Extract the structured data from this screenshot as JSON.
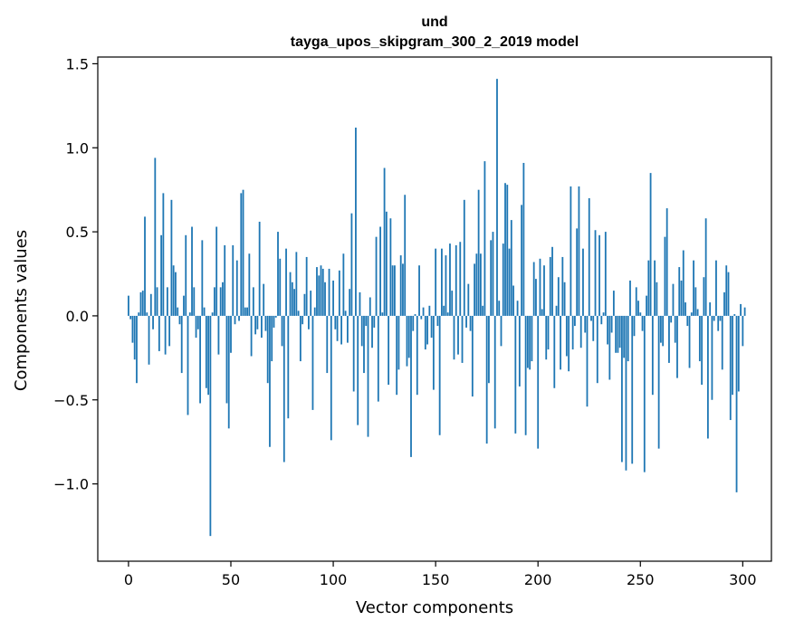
{
  "chart_data": {
    "type": "bar",
    "title_lines": [
      "und",
      "tayga_upos_skipgram_300_2_2019 model"
    ],
    "xlabel": "Vector components",
    "ylabel": "Components values",
    "xlim": [
      -15,
      314
    ],
    "ylim": [
      -1.46,
      1.54
    ],
    "xticks": [
      0,
      50,
      100,
      150,
      200,
      250,
      300
    ],
    "xtick_labels": [
      "0",
      "50",
      "100",
      "150",
      "200",
      "250",
      "300"
    ],
    "yticks": [
      -1.0,
      -0.5,
      0.0,
      0.5,
      1.0,
      1.5
    ],
    "ytick_labels": [
      "−1.0",
      "−0.5",
      "0.0",
      "0.5",
      "1.0",
      "1.5"
    ],
    "bar_color": "#1f77b4",
    "grid": false,
    "legend": "none",
    "values": [
      0.12,
      -0.02,
      -0.16,
      -0.26,
      -0.4,
      0.02,
      0.14,
      0.15,
      0.59,
      0.02,
      -0.29,
      0.13,
      -0.08,
      0.94,
      0.17,
      -0.21,
      0.48,
      0.73,
      -0.23,
      0.17,
      -0.18,
      0.69,
      0.3,
      0.26,
      0.05,
      -0.05,
      -0.34,
      0.12,
      0.48,
      -0.59,
      0.02,
      0.53,
      0.17,
      -0.13,
      -0.08,
      -0.52,
      0.45,
      0.05,
      -0.43,
      -0.47,
      -1.31,
      0.02,
      0.17,
      0.53,
      -0.23,
      0.17,
      0.2,
      0.42,
      -0.52,
      -0.67,
      -0.22,
      0.42,
      -0.05,
      0.33,
      -0.03,
      0.73,
      0.75,
      0.05,
      0.05,
      0.37,
      -0.24,
      0.17,
      -0.11,
      -0.08,
      0.56,
      -0.13,
      0.19,
      -0.09,
      -0.4,
      -0.78,
      -0.27,
      -0.07,
      -0.01,
      0.5,
      0.34,
      -0.18,
      -0.87,
      0.4,
      -0.61,
      0.26,
      0.2,
      0.16,
      0.38,
      0.03,
      -0.27,
      -0.05,
      0.13,
      0.35,
      -0.08,
      0.15,
      -0.56,
      0.05,
      0.29,
      0.24,
      0.3,
      0.28,
      0.2,
      -0.34,
      0.28,
      -0.74,
      0.21,
      -0.08,
      -0.15,
      0.27,
      -0.17,
      0.37,
      0.03,
      -0.16,
      0.16,
      0.61,
      -0.45,
      1.12,
      -0.65,
      0.14,
      -0.18,
      -0.34,
      -0.06,
      -0.72,
      0.11,
      -0.19,
      -0.07,
      0.47,
      -0.51,
      0.53,
      0.02,
      0.88,
      0.62,
      -0.41,
      0.58,
      0.3,
      0.3,
      -0.47,
      -0.32,
      0.36,
      0.31,
      0.72,
      -0.3,
      -0.25,
      -0.84,
      -0.09,
      0.01,
      -0.47,
      0.3,
      -0.02,
      0.05,
      -0.2,
      -0.17,
      0.06,
      -0.13,
      -0.44,
      0.4,
      -0.06,
      -0.71,
      0.4,
      0.06,
      0.36,
      0.02,
      0.43,
      0.15,
      -0.26,
      0.42,
      -0.23,
      0.44,
      -0.28,
      0.69,
      -0.07,
      0.19,
      -0.09,
      -0.48,
      0.31,
      0.37,
      0.75,
      0.37,
      0.06,
      0.92,
      -0.76,
      -0.4,
      0.45,
      0.5,
      -0.67,
      1.41,
      0.09,
      -0.18,
      0.43,
      0.79,
      0.78,
      0.4,
      0.57,
      0.18,
      -0.7,
      0.09,
      -0.42,
      0.66,
      0.91,
      -0.71,
      -0.31,
      -0.32,
      -0.27,
      0.32,
      0.22,
      -0.79,
      0.34,
      0.04,
      0.3,
      -0.26,
      -0.2,
      0.35,
      0.41,
      -0.43,
      0.06,
      0.23,
      -0.32,
      0.35,
      0.2,
      -0.24,
      -0.33,
      0.77,
      -0.2,
      -0.06,
      0.52,
      0.77,
      -0.19,
      0.4,
      -0.1,
      -0.54,
      0.7,
      -0.03,
      -0.15,
      0.51,
      -0.4,
      0.48,
      -0.05,
      0.02,
      0.5,
      -0.17,
      -0.38,
      -0.1,
      0.15,
      -0.22,
      -0.22,
      -0.19,
      -0.87,
      -0.25,
      -0.92,
      -0.27,
      0.21,
      -0.88,
      -0.12,
      0.17,
      0.09,
      0.02,
      -0.09,
      -0.93,
      0.12,
      0.33,
      0.85,
      -0.47,
      0.33,
      0.2,
      -0.79,
      -0.16,
      -0.18,
      0.47,
      0.64,
      -0.28,
      -0.04,
      0.19,
      -0.16,
      -0.37,
      0.29,
      0.21,
      0.39,
      0.08,
      -0.06,
      -0.31,
      0.02,
      0.33,
      0.17,
      0.04,
      -0.27,
      -0.41,
      0.23,
      0.58,
      -0.73,
      0.08,
      -0.5,
      -0.03,
      0.33,
      -0.09,
      -0.03,
      -0.32,
      0.14,
      0.3,
      0.26,
      -0.62,
      -0.47,
      0.01,
      -1.05,
      -0.45,
      0.07,
      -0.18,
      0.05
    ]
  }
}
